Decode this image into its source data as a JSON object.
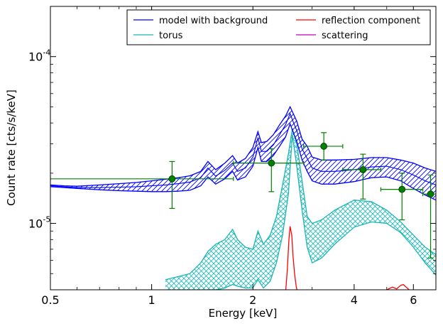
{
  "chart_data": {
    "type": "line",
    "xlabel": "Energy [keV]",
    "ylabel": "Count rate [cts/s/keV]",
    "xscale": "log",
    "yscale": "log",
    "xlim": [
      0.5,
      7.0
    ],
    "ylim": [
      4e-06,
      0.0002
    ],
    "grid": false,
    "legend_position": "top-right",
    "x_ticks": [
      {
        "value": 0.5,
        "label": "0.5"
      },
      {
        "value": 1,
        "label": "1"
      },
      {
        "value": 2,
        "label": "2"
      },
      {
        "value": 4,
        "label": "4"
      },
      {
        "value": 6,
        "label": "6"
      }
    ],
    "y_ticks": [
      {
        "value": 1e-05,
        "base": "10",
        "exp": "-5"
      },
      {
        "value": 0.0001,
        "base": "10",
        "exp": "-4"
      }
    ],
    "colors": {
      "model": "#0000ff",
      "torus": "#1ab5b5",
      "reflection": "#ff0000",
      "scattering": "#bf00bf",
      "data": "#008000"
    },
    "legend": [
      {
        "label": "model with background",
        "color": "#0000ff"
      },
      {
        "label": "reflection component",
        "color": "#ff0000"
      },
      {
        "label": "torus",
        "color": "#1ab5b5"
      },
      {
        "label": "scattering",
        "color": "#bf00bf"
      }
    ],
    "series": [
      {
        "name": "model with background",
        "x": [
          0.5,
          0.55,
          0.6,
          0.7,
          0.8,
          0.9,
          1.0,
          1.1,
          1.2,
          1.3,
          1.4,
          1.47,
          1.55,
          1.65,
          1.74,
          1.8,
          1.9,
          2.0,
          2.07,
          2.12,
          2.2,
          2.3,
          2.4,
          2.5,
          2.58,
          2.63,
          2.7,
          2.8,
          2.9,
          3.0,
          3.2,
          3.5,
          4.0,
          4.5,
          5.0,
          5.5,
          6.0,
          6.5,
          7.0
        ],
        "upper": [
          1.7e-05,
          1.68e-05,
          1.67e-05,
          1.7e-05,
          1.73e-05,
          1.76e-05,
          1.8e-05,
          1.84e-05,
          1.88e-05,
          1.93e-05,
          2.05e-05,
          2.35e-05,
          2.1e-05,
          2.3e-05,
          2.55e-05,
          2.3e-05,
          2.45e-05,
          2.85e-05,
          3.55e-05,
          3.05e-05,
          3.1e-05,
          3.4e-05,
          3.9e-05,
          4.4e-05,
          5e-05,
          4.6e-05,
          4.1e-05,
          3.2e-05,
          2.9e-05,
          2.5e-05,
          2.4e-05,
          2.4e-05,
          2.42e-05,
          2.48e-05,
          2.48e-05,
          2.4e-05,
          2.3e-05,
          2.15e-05,
          2.05e-05
        ],
        "best": [
          1.68e-05,
          1.66e-05,
          1.64e-05,
          1.64e-05,
          1.65e-05,
          1.66e-05,
          1.68e-05,
          1.7e-05,
          1.73e-05,
          1.77e-05,
          1.88e-05,
          2.15e-05,
          1.92e-05,
          2.08e-05,
          2.3e-05,
          2.05e-05,
          2.15e-05,
          2.5e-05,
          3.25e-05,
          2.7e-05,
          2.7e-05,
          2.95e-05,
          3.4e-05,
          3.9e-05,
          4.55e-05,
          4.1e-05,
          3.6e-05,
          2.8e-05,
          2.45e-05,
          2.15e-05,
          2.05e-05,
          2.05e-05,
          2.1e-05,
          2.18e-05,
          2.2e-05,
          2.1e-05,
          1.95e-05,
          1.8e-05,
          1.7e-05
        ],
        "lower": [
          1.66e-05,
          1.64e-05,
          1.62e-05,
          1.59e-05,
          1.57e-05,
          1.56e-05,
          1.55e-05,
          1.55e-05,
          1.56e-05,
          1.58e-05,
          1.68e-05,
          1.9e-05,
          1.72e-05,
          1.85e-05,
          2.05e-05,
          1.82e-05,
          1.9e-05,
          2.2e-05,
          2.85e-05,
          2.35e-05,
          2.35e-05,
          2.55e-05,
          2.9e-05,
          3.3e-05,
          3.95e-05,
          3.55e-05,
          3.1e-05,
          2.4e-05,
          2.05e-05,
          1.8e-05,
          1.72e-05,
          1.72e-05,
          1.78e-05,
          1.88e-05,
          1.9e-05,
          1.8e-05,
          1.62e-05,
          1.48e-05,
          1.38e-05
        ]
      },
      {
        "name": "torus",
        "x": [
          1.1,
          1.2,
          1.3,
          1.4,
          1.47,
          1.55,
          1.65,
          1.74,
          1.8,
          1.9,
          2.0,
          2.07,
          2.15,
          2.25,
          2.35,
          2.45,
          2.55,
          2.62,
          2.7,
          2.8,
          2.9,
          3.0,
          3.2,
          3.5,
          4.0,
          4.5,
          5.0,
          5.5,
          6.0,
          6.5,
          7.0
        ],
        "upper": [
          4.6e-06,
          4.8e-06,
          5e-06,
          5.8e-06,
          6.8e-06,
          7.5e-06,
          8e-06,
          9.2e-06,
          8e-06,
          7.2e-06,
          7e-06,
          9e-06,
          7.5e-06,
          8.5e-06,
          1.1e-05,
          1.7e-05,
          2.6e-05,
          3.7e-05,
          3e-05,
          1.8e-05,
          1.1e-05,
          1e-05,
          1.05e-05,
          1.2e-05,
          1.38e-05,
          1.35e-05,
          1.2e-05,
          1.02e-05,
          8.5e-06,
          7.2e-06,
          6.5e-06
        ],
        "lower": [
          3.8e-06,
          3.8e-06,
          3.8e-06,
          3.9e-06,
          4e-06,
          4e-06,
          4.1e-06,
          4.3e-06,
          4.2e-06,
          4.1e-06,
          4.1e-06,
          4.6e-06,
          4.1e-06,
          4.5e-06,
          5.8e-06,
          8.5e-06,
          1.5e-05,
          3.4e-05,
          2.2e-05,
          1.2e-05,
          7.2e-06,
          5.8e-06,
          6.2e-06,
          7.5e-06,
          9.5e-06,
          1.02e-05,
          1e-05,
          8.8e-06,
          7.2e-06,
          5.8e-06,
          4.9e-06
        ]
      },
      {
        "name": "reflection component",
        "x": [
          2.5,
          2.53,
          2.56,
          2.58,
          2.61,
          2.63,
          2.66,
          2.69,
          2.72,
          2.78,
          2.8,
          4.8,
          5.0,
          5.2,
          5.35,
          5.5,
          5.6,
          5.75,
          6.0
        ],
        "values": [
          3.8e-06,
          5.2e-06,
          8e-06,
          9.6e-06,
          8.5e-06,
          6.5e-06,
          5e-06,
          4.2e-06,
          3.8e-06,
          3.8e-06,
          3.8e-06,
          3.8e-06,
          4e-06,
          4.15e-06,
          4.05e-06,
          4.25e-06,
          4.3e-06,
          4.1e-06,
          3.8e-06
        ]
      }
    ],
    "data_points": [
      {
        "x": 1.15,
        "y": 1.85e-05,
        "xerr": [
          0.5,
          1.75
        ],
        "yerr": [
          1.23e-05,
          2.35e-05
        ]
      },
      {
        "x": 2.27,
        "y": 2.3e-05,
        "xerr": [
          1.75,
          2.83
        ],
        "yerr": [
          1.55e-05,
          2.8e-05
        ]
      },
      {
        "x": 3.25,
        "y": 2.9e-05,
        "xerr": [
          2.83,
          3.7
        ],
        "yerr": [
          2.4e-05,
          3.5e-05
        ]
      },
      {
        "x": 4.25,
        "y": 2.1e-05,
        "xerr": [
          3.7,
          4.8
        ],
        "yerr": [
          1.4e-05,
          2.6e-05
        ]
      },
      {
        "x": 5.55,
        "y": 1.6e-05,
        "xerr": [
          4.8,
          6.4
        ],
        "yerr": [
          1.05e-05,
          2e-05
        ]
      },
      {
        "x": 6.75,
        "y": 1.5e-05,
        "xerr": [
          6.4,
          7.0
        ],
        "yerr": [
          6.2e-06,
          1.95e-05
        ]
      }
    ]
  }
}
